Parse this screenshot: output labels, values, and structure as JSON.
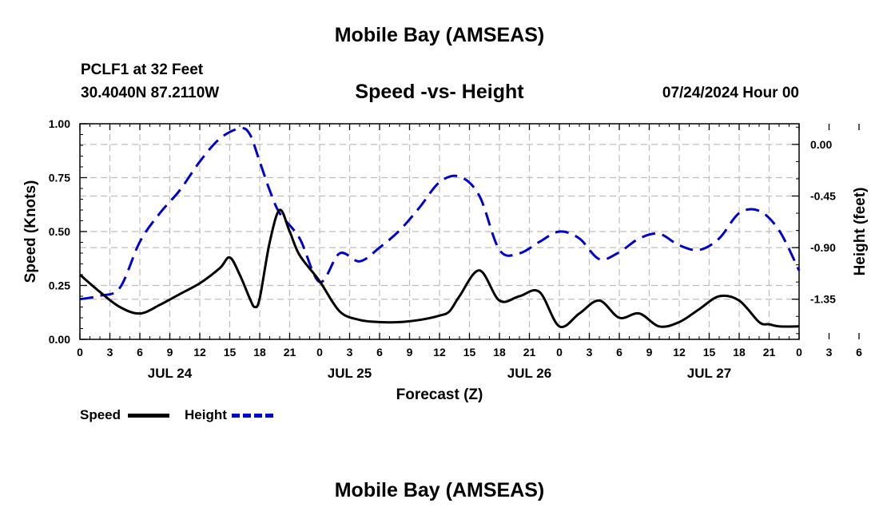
{
  "header": {
    "title": "Mobile Bay (AMSEAS)",
    "station": "PCLF1 at 32 Feet",
    "coords": "30.4040N  87.2110W",
    "subtitle": "Speed -vs- Height",
    "date": "07/24/2024 Hour 00"
  },
  "footer": {
    "title": "Mobile Bay (AMSEAS)"
  },
  "legend": {
    "speed_label": "Speed",
    "height_label": "Height"
  },
  "colors": {
    "speed": "#000000",
    "height": "#0000cc",
    "grid": "#bdbdbd"
  },
  "chart_data": {
    "type": "line",
    "xlabel": "Forecast (Z)",
    "ylabel": "Speed (Knots)",
    "ylabel_right": "Height (feet)",
    "xlim": [
      0,
      72
    ],
    "ylim": [
      0,
      1
    ],
    "ylim_right": [
      -1.7,
      0.18
    ],
    "x_tick_labels": [
      "0",
      "3",
      "6",
      "9",
      "12",
      "15",
      "18",
      "21",
      "0",
      "3",
      "6",
      "9",
      "12",
      "15",
      "18",
      "21",
      "0",
      "3",
      "6",
      "9",
      "12",
      "15",
      "18",
      "21",
      "0",
      "3",
      "6",
      "9",
      "12",
      "15",
      "18",
      "21",
      "0"
    ],
    "y_ticks_left": [
      0,
      0.25,
      0.5,
      0.75,
      1.0
    ],
    "y_tick_labels_left": [
      "0.00",
      "0.25",
      "0.50",
      "0.75",
      "1.00"
    ],
    "y_ticks_right": [
      0,
      -0.45,
      -0.9,
      -1.35
    ],
    "y_tick_labels_right": [
      "0.00",
      "-0.45",
      "-0.90",
      "-1.35"
    ],
    "day_labels": [
      {
        "x": 9,
        "label": "JUL 24"
      },
      {
        "x": 27,
        "label": "JUL 25"
      },
      {
        "x": 45,
        "label": "JUL 26"
      },
      {
        "x": 63,
        "label": "JUL 27"
      }
    ],
    "grid": true,
    "series": [
      {
        "name": "Speed",
        "axis": "left",
        "x": [
          0,
          2,
          4,
          6,
          8,
          10,
          12,
          14,
          15,
          16,
          17,
          17.5,
          18,
          19,
          20,
          21,
          22,
          24,
          26,
          28,
          30,
          32,
          34,
          36,
          37,
          38,
          40,
          42,
          44,
          46,
          48,
          50,
          52,
          54,
          56,
          58,
          60,
          62,
          64,
          66,
          68,
          69,
          70,
          72
        ],
        "values": [
          0.3,
          0.22,
          0.15,
          0.12,
          0.16,
          0.21,
          0.26,
          0.33,
          0.38,
          0.3,
          0.19,
          0.15,
          0.19,
          0.45,
          0.6,
          0.5,
          0.39,
          0.27,
          0.13,
          0.09,
          0.08,
          0.08,
          0.09,
          0.11,
          0.13,
          0.2,
          0.32,
          0.18,
          0.2,
          0.22,
          0.06,
          0.12,
          0.18,
          0.1,
          0.12,
          0.06,
          0.08,
          0.14,
          0.2,
          0.18,
          0.08,
          0.07,
          0.06,
          0.06
        ]
      },
      {
        "name": "Height",
        "axis": "right",
        "x": [
          0,
          2,
          4,
          6,
          8,
          10,
          12,
          14,
          16,
          17,
          18,
          19,
          20,
          22,
          24,
          26,
          28,
          30,
          32,
          34,
          36,
          38,
          40,
          42,
          44,
          46,
          48,
          50,
          52,
          54,
          56,
          58,
          60,
          62,
          64,
          66,
          68,
          70,
          72
        ],
        "values": [
          -1.35,
          -1.32,
          -1.25,
          -0.85,
          -0.6,
          -0.4,
          -0.15,
          0.05,
          0.14,
          0.09,
          -0.15,
          -0.4,
          -0.6,
          -0.82,
          -1.2,
          -0.95,
          -1.02,
          -0.9,
          -0.75,
          -0.55,
          -0.33,
          -0.28,
          -0.45,
          -0.92,
          -0.95,
          -0.85,
          -0.76,
          -0.82,
          -1.0,
          -0.94,
          -0.82,
          -0.78,
          -0.88,
          -0.92,
          -0.82,
          -0.6,
          -0.58,
          -0.75,
          -1.1
        ]
      }
    ]
  }
}
